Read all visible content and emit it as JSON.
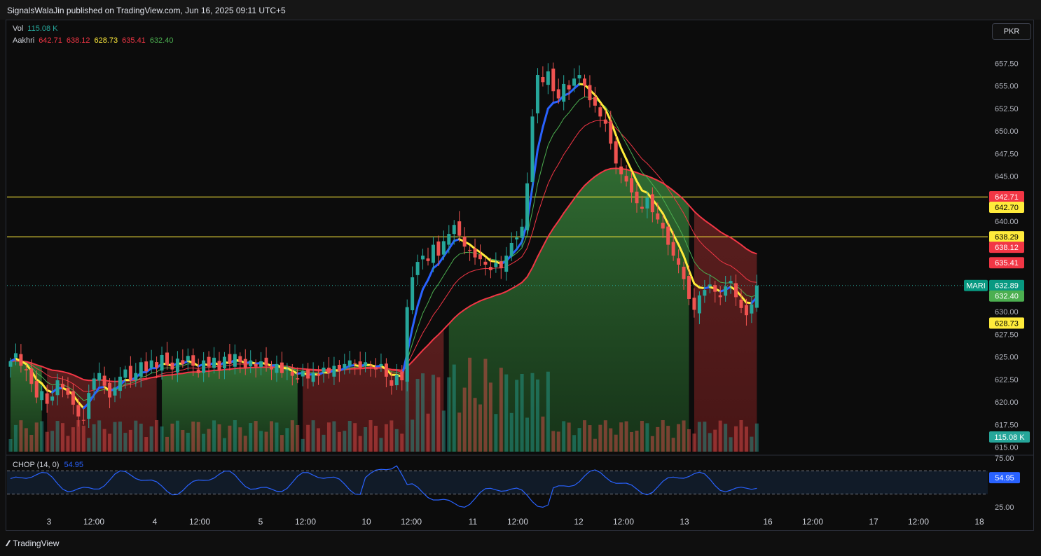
{
  "header": {
    "published": "SignalsWalaJin published on TradingView.com, Jun 16, 2025 09:11 UTC+5"
  },
  "currency_button": "PKR",
  "legend": {
    "vol_label": "Vol",
    "vol_value": "115.08 K",
    "ind_label": "Aakhri",
    "ind_values": [
      "642.71",
      "638.12",
      "628.73",
      "635.41",
      "632.40"
    ]
  },
  "chop": {
    "label": "CHOP (14, 0)",
    "value": "54.95"
  },
  "footer": {
    "brand": "TradingView"
  },
  "colors": {
    "up": "#26a69a",
    "down": "#ef5350",
    "yellow": "#ffeb3b",
    "blue": "#2962ff",
    "green": "#4caf50",
    "red": "#f23645",
    "lime": "#76ff03"
  },
  "chart_data": {
    "type": "candlestick",
    "symbol": "MARI",
    "x_ticks": [
      "3",
      "12:00",
      "4",
      "12:00",
      "5",
      "12:00",
      "10",
      "12:00",
      "11",
      "12:00",
      "12",
      "12:00",
      "13",
      "16",
      "12:00",
      "17",
      "12:00",
      "18"
    ],
    "y_ticks": [
      "657.50",
      "655.00",
      "652.50",
      "650.00",
      "647.50",
      "645.00",
      "640.00",
      "637.50",
      "632.50",
      "630.00",
      "627.50",
      "625.00",
      "622.50",
      "620.00",
      "617.50",
      "615.00"
    ],
    "ylim": [
      614.5,
      660
    ],
    "price_tags": [
      {
        "value": 642.71,
        "text": "642.71",
        "color": "#f23645"
      },
      {
        "value": 642.7,
        "text": "642.70",
        "color": "#ffeb3b"
      },
      {
        "value": 638.29,
        "text": "638.29",
        "color": "#ffeb3b"
      },
      {
        "value": 638.12,
        "text": "638.12",
        "color": "#f23645"
      },
      {
        "value": 635.41,
        "text": "635.41",
        "color": "#f23645"
      },
      {
        "value": 632.89,
        "text": "632.89",
        "color": "#089981"
      },
      {
        "value": 632.4,
        "text": "632.40",
        "color": "#4caf50"
      },
      {
        "value": 628.73,
        "text": "628.73",
        "color": "#ffeb3b"
      }
    ],
    "symbol_tag": "MARI",
    "volume_tag": "115.08 K",
    "horizontal_lines": [
      642.7,
      638.29
    ],
    "last_price": 632.89,
    "closes": [
      624.5,
      625.4,
      624.0,
      623.5,
      622.0,
      620.5,
      621.2,
      619.8,
      620.6,
      622.4,
      621.6,
      620.8,
      619.7,
      618.4,
      618.0,
      621.0,
      622.6,
      623.2,
      621.8,
      620.5,
      621.6,
      622.8,
      623.6,
      622.4,
      623.2,
      624.4,
      623.4,
      624.6,
      623.8,
      625.2,
      624.1,
      623.6,
      624.8,
      624.2,
      625.1,
      624.0,
      623.2,
      624.6,
      623.9,
      624.9,
      623.5,
      625.0,
      624.2,
      625.3,
      624.4,
      623.8,
      624.6,
      623.9,
      624.5,
      624.0,
      623.6,
      624.2,
      623.2,
      623.6,
      622.9,
      622.5,
      623.4,
      622.6,
      623.2,
      622.9,
      623.8,
      623.2,
      624.0,
      623.4,
      624.2,
      624.6,
      624.2,
      623.8,
      624.4,
      624.0,
      623.6,
      624.2,
      622.8,
      621.8,
      623.0,
      622.4,
      630.5,
      633.8,
      635.5,
      636.2,
      635.6,
      637.4,
      636.2,
      637.8,
      638.6,
      639.6,
      638.4,
      637.2,
      636.8,
      636.0,
      635.8,
      635.2,
      634.6,
      635.4,
      634.8,
      636.2,
      637.6,
      638.2,
      639.4,
      644.2,
      651.6,
      656.2,
      655.4,
      656.6,
      654.4,
      653.6,
      655.2,
      654.6,
      655.8,
      656.2,
      655.0,
      653.4,
      652.8,
      651.6,
      650.8,
      648.6,
      646.4,
      645.2,
      644.4,
      643.2,
      642.0,
      641.4,
      642.6,
      641.0,
      640.2,
      639.2,
      637.4,
      636.2,
      635.2,
      633.6,
      631.4,
      630.2,
      631.8,
      632.4,
      633.0,
      632.2,
      631.6,
      632.8,
      633.4,
      631.6,
      630.4,
      629.6,
      630.8,
      632.89
    ],
    "volume_ylim": [
      0,
      200
    ],
    "chop_ylim": [
      25,
      75
    ],
    "chop_ticks": [
      "75.00",
      "25.00"
    ],
    "chop_bands": [
      61.8,
      38.2
    ]
  }
}
